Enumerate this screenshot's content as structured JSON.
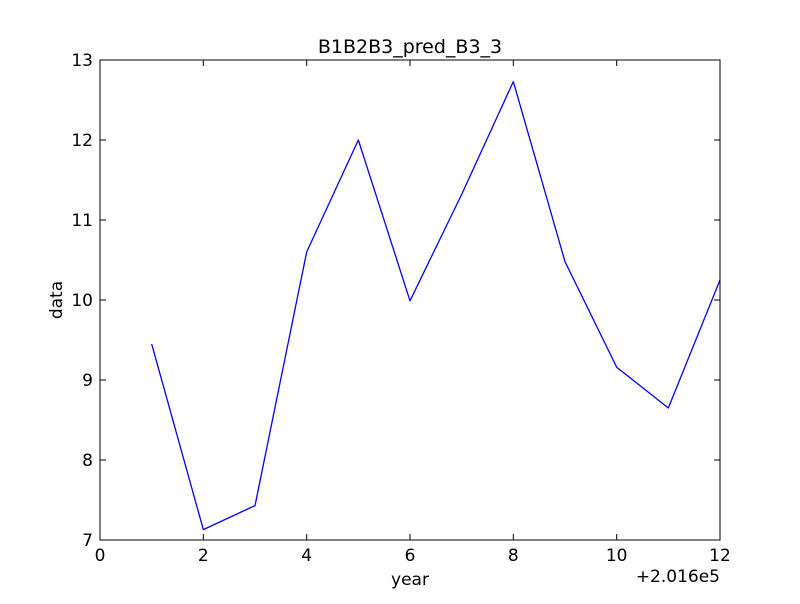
{
  "chart_data": {
    "type": "line",
    "title": "B1B2B3_pred_B3_3",
    "xlabel": "year",
    "ylabel": "data",
    "x_offset_label": "+2.016e5",
    "xlim": [
      0,
      12
    ],
    "ylim": [
      7,
      13
    ],
    "xticks": [
      0,
      2,
      4,
      6,
      8,
      10,
      12
    ],
    "yticks": [
      7,
      8,
      9,
      10,
      11,
      12,
      13
    ],
    "grid": false,
    "series": [
      {
        "color": "#0000ff",
        "x": [
          1,
          2,
          3,
          4,
          5,
          6,
          7,
          8,
          9,
          10,
          11,
          12
        ],
        "y": [
          9.45,
          7.13,
          7.43,
          10.6,
          12.0,
          9.99,
          11.32,
          12.73,
          10.48,
          9.16,
          8.65,
          10.25
        ]
      }
    ]
  }
}
